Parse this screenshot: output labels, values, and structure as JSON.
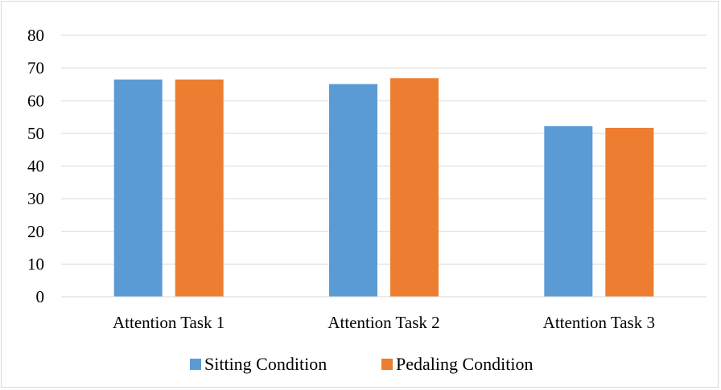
{
  "chart_data": {
    "type": "bar",
    "title": "",
    "xlabel": "",
    "ylabel": "",
    "categories": [
      "Attention Task 1",
      "Attention Task 2",
      "Attention Task 3"
    ],
    "series": [
      {
        "name": "Sitting Condition",
        "values": [
          66.5,
          65.1,
          52.2
        ],
        "color": "#5b9bd5"
      },
      {
        "name": "Pedaling Condition",
        "values": [
          66.5,
          66.9,
          51.7
        ],
        "color": "#ed7d31"
      }
    ],
    "ylim": [
      0,
      80
    ],
    "yticks": [
      0,
      10,
      20,
      30,
      40,
      50,
      60,
      70,
      80
    ],
    "grid": true,
    "legend_position": "bottom"
  }
}
